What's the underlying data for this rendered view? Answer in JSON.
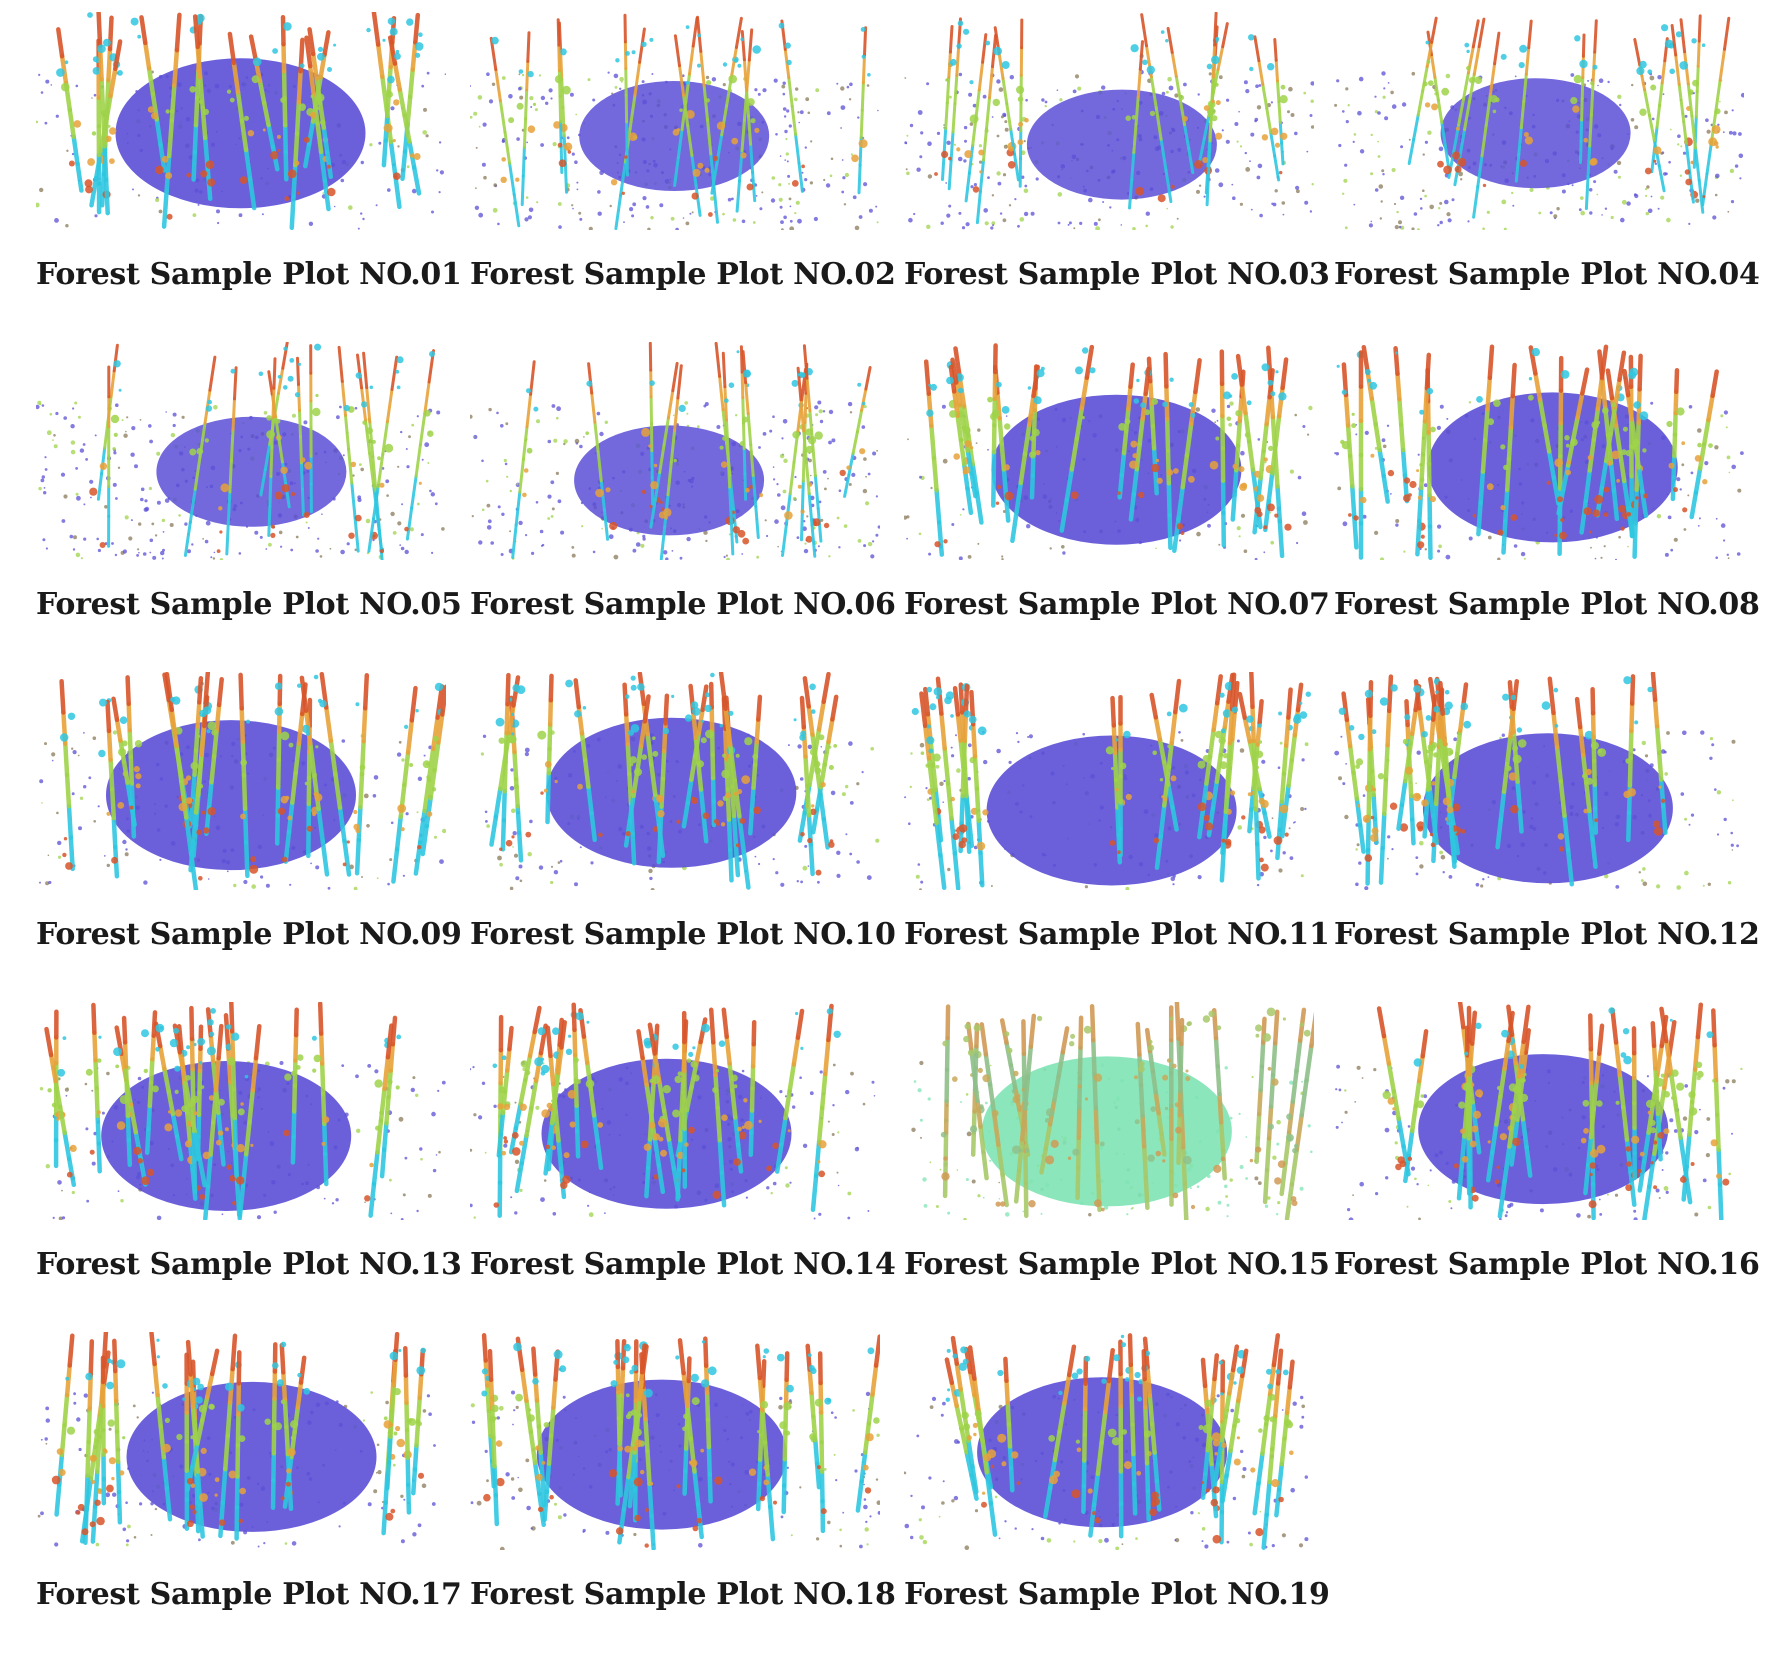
{
  "figure": {
    "plots": [
      {
        "caption": "Forest Sample Plot NO.01",
        "scan_tint": "mixed"
      },
      {
        "caption": "Forest Sample Plot NO.02",
        "scan_tint": "sparse"
      },
      {
        "caption": "Forest Sample Plot NO.03",
        "scan_tint": "sparse"
      },
      {
        "caption": "Forest Sample Plot NO.04",
        "scan_tint": "sparse"
      },
      {
        "caption": "Forest Sample Plot NO.05",
        "scan_tint": "sparse"
      },
      {
        "caption": "Forest Sample Plot NO.06",
        "scan_tint": "sparse"
      },
      {
        "caption": "Forest Sample Plot NO.07",
        "scan_tint": "dense"
      },
      {
        "caption": "Forest Sample Plot NO.08",
        "scan_tint": "dense"
      },
      {
        "caption": "Forest Sample Plot NO.09",
        "scan_tint": "dense"
      },
      {
        "caption": "Forest Sample Plot NO.10",
        "scan_tint": "dense"
      },
      {
        "caption": "Forest Sample Plot NO.11",
        "scan_tint": "dense"
      },
      {
        "caption": "Forest Sample Plot NO.12",
        "scan_tint": "dense"
      },
      {
        "caption": "Forest Sample Plot NO.13",
        "scan_tint": "dense"
      },
      {
        "caption": "Forest Sample Plot NO.14",
        "scan_tint": "dense"
      },
      {
        "caption": "Forest Sample Plot NO.15",
        "scan_tint": "green"
      },
      {
        "caption": "Forest Sample Plot NO.16",
        "scan_tint": "dense"
      },
      {
        "caption": "Forest Sample Plot NO.17",
        "scan_tint": "dense"
      },
      {
        "caption": "Forest Sample Plot NO.18",
        "scan_tint": "dense"
      },
      {
        "caption": "Forest Sample Plot NO.19",
        "scan_tint": "dense"
      }
    ],
    "colors": {
      "ground": "#5b4fd6",
      "stem_low": "#2fc7e0",
      "stem_mid": "#9fd34a",
      "stem_high": "#e8a23a",
      "stem_top": "#d8552a",
      "ground_alt": "#7fe3b4",
      "caption": "#1a1a1a",
      "background": "#ffffff"
    }
  }
}
